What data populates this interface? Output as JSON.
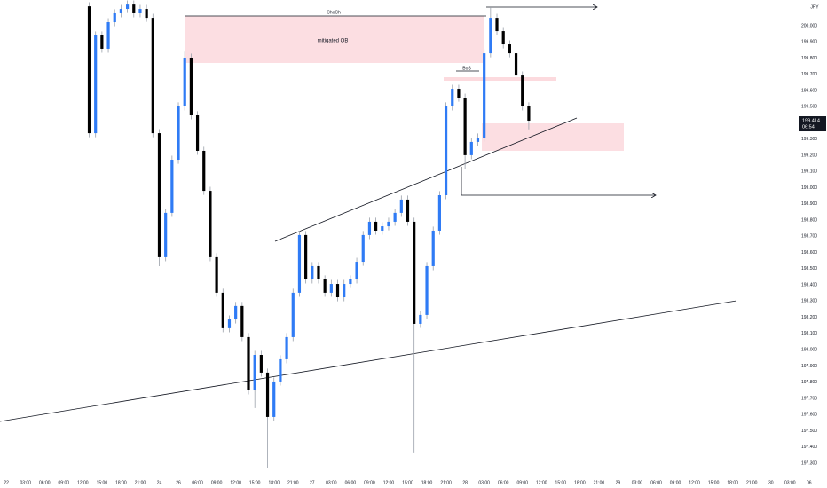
{
  "chart_data": {
    "type": "candlestick",
    "currency": "JPY",
    "annotations": [
      "ChoCh",
      "mitigated OB",
      "BoS"
    ],
    "up_color": "#2f7bf5",
    "down_color": "#000000",
    "wick_color": "#9aa0aa",
    "grid": false,
    "x": [
      13,
      14,
      15,
      16,
      17,
      18,
      19,
      20,
      21,
      22,
      23,
      24,
      25,
      26,
      27,
      28,
      29,
      30,
      31,
      32,
      33,
      34,
      35,
      36,
      37,
      38,
      39,
      40,
      41,
      42,
      43,
      44,
      45,
      46,
      47,
      48,
      49,
      50,
      51,
      52,
      53,
      54,
      55,
      56,
      57,
      58,
      59,
      60,
      61,
      62,
      63,
      64,
      65,
      66,
      67,
      68,
      69,
      70,
      71,
      72,
      73,
      74,
      75,
      76,
      77,
      78,
      79,
      80,
      81,
      82
    ],
    "open": [
      200.12,
      199.337,
      199.94,
      199.858,
      200.022,
      200.077,
      200.104,
      200.131,
      200.077,
      200.104,
      200.049,
      199.337,
      198.571,
      198.845,
      199.173,
      199.502,
      199.803,
      199.447,
      199.228,
      198.981,
      198.571,
      198.352,
      198.133,
      198.187,
      198.27,
      198.078,
      197.749,
      197.968,
      197.859,
      197.585,
      197.804,
      197.941,
      198.078,
      198.352,
      198.708,
      198.434,
      198.516,
      198.434,
      198.352,
      198.406,
      198.324,
      198.406,
      198.434,
      198.543,
      198.708,
      198.79,
      198.735,
      198.762,
      198.79,
      198.845,
      198.927,
      198.79,
      198.16,
      198.215,
      198.516,
      198.735,
      198.954,
      199.502,
      199.611,
      199.556,
      199.201,
      199.283,
      199.31,
      199.83,
      200.049,
      199.967,
      199.885,
      199.83,
      199.693,
      199.502
    ],
    "high": [
      200.145,
      199.965,
      199.965,
      200.047,
      200.102,
      200.129,
      200.156,
      200.156,
      200.129,
      200.129,
      200.074,
      199.362,
      198.87,
      199.198,
      199.527,
      199.84,
      199.828,
      199.472,
      199.253,
      199.006,
      198.596,
      198.377,
      198.212,
      198.295,
      198.295,
      198.103,
      197.993,
      197.993,
      197.884,
      197.829,
      197.966,
      198.103,
      198.377,
      198.733,
      198.733,
      198.541,
      198.541,
      198.459,
      198.431,
      198.431,
      198.431,
      198.459,
      198.568,
      198.733,
      198.815,
      198.815,
      198.787,
      198.815,
      198.87,
      198.952,
      198.952,
      198.815,
      198.24,
      198.541,
      198.76,
      198.979,
      199.527,
      199.636,
      199.636,
      199.581,
      199.308,
      199.335,
      199.855,
      200.115,
      200.074,
      199.992,
      199.91,
      199.855,
      199.718,
      199.527
    ],
    "low": [
      199.312,
      199.312,
      199.833,
      199.833,
      199.997,
      200.052,
      200.079,
      200.052,
      200.052,
      200.024,
      199.312,
      198.516,
      198.546,
      198.82,
      199.148,
      199.477,
      199.422,
      199.203,
      198.956,
      198.546,
      198.327,
      198.108,
      198.108,
      198.162,
      198.053,
      197.724,
      197.64,
      197.834,
      197.267,
      197.56,
      197.779,
      197.916,
      198.053,
      198.327,
      198.409,
      198.409,
      198.409,
      198.327,
      198.327,
      198.299,
      198.299,
      198.381,
      198.409,
      198.518,
      198.683,
      198.71,
      198.71,
      198.737,
      198.765,
      198.82,
      198.765,
      197.366,
      198.135,
      198.19,
      198.491,
      198.71,
      198.929,
      199.477,
      199.531,
      199.118,
      199.176,
      199.258,
      199.285,
      199.805,
      199.942,
      199.86,
      199.805,
      199.668,
      199.477,
      199.361
    ],
    "close": [
      199.337,
      199.94,
      199.858,
      200.022,
      200.077,
      200.104,
      200.131,
      200.077,
      200.104,
      200.049,
      199.337,
      198.571,
      198.845,
      199.173,
      199.502,
      199.803,
      199.447,
      199.228,
      198.981,
      198.571,
      198.352,
      198.133,
      198.187,
      198.27,
      198.078,
      197.749,
      197.968,
      197.859,
      197.585,
      197.804,
      197.941,
      198.078,
      198.352,
      198.708,
      198.434,
      198.516,
      198.434,
      198.352,
      198.406,
      198.324,
      198.406,
      198.434,
      198.543,
      198.708,
      198.79,
      198.735,
      198.762,
      198.79,
      198.845,
      198.927,
      198.79,
      198.16,
      198.215,
      198.516,
      198.735,
      198.954,
      199.502,
      199.611,
      199.556,
      199.201,
      199.283,
      199.31,
      199.83,
      200.049,
      199.967,
      199.885,
      199.83,
      199.693,
      199.502,
      199.414
    ],
    "last_price": {
      "value": 199.414,
      "label": "199.414"
    },
    "countdown": "06:54",
    "xlim": [
      -1,
      127
    ],
    "xticks": [
      {
        "value": 0,
        "label": "22"
      },
      {
        "value": 3,
        "label": "03:00"
      },
      {
        "value": 6,
        "label": "06:00"
      },
      {
        "value": 9,
        "label": "09:00"
      },
      {
        "value": 12,
        "label": "12:00"
      },
      {
        "value": 15,
        "label": "15:00"
      },
      {
        "value": 18,
        "label": "18:00"
      },
      {
        "value": 21,
        "label": "21:00"
      },
      {
        "value": 24,
        "label": "24"
      },
      {
        "value": 27,
        "label": "26"
      },
      {
        "value": 30,
        "label": "06:00"
      },
      {
        "value": 33,
        "label": "09:00"
      },
      {
        "value": 36,
        "label": "12:00"
      },
      {
        "value": 39,
        "label": "15:00"
      },
      {
        "value": 42,
        "label": "18:00"
      },
      {
        "value": 45,
        "label": "21:00"
      },
      {
        "value": 48,
        "label": "27"
      },
      {
        "value": 51,
        "label": "03:00"
      },
      {
        "value": 54,
        "label": "06:00"
      },
      {
        "value": 57,
        "label": "09:00"
      },
      {
        "value": 60,
        "label": "12:00"
      },
      {
        "value": 63,
        "label": "15:00"
      },
      {
        "value": 66,
        "label": "18:00"
      },
      {
        "value": 69,
        "label": "21:00"
      },
      {
        "value": 72,
        "label": "28"
      },
      {
        "value": 75,
        "label": "03:00"
      },
      {
        "value": 78,
        "label": "06:00"
      },
      {
        "value": 81,
        "label": "09:00"
      },
      {
        "value": 84,
        "label": "12:00"
      },
      {
        "value": 87,
        "label": "15:00"
      },
      {
        "value": 90,
        "label": "18:00"
      },
      {
        "value": 93,
        "label": "21:00"
      },
      {
        "value": 96,
        "label": "29"
      },
      {
        "value": 99,
        "label": "03:00"
      },
      {
        "value": 102,
        "label": "06:00"
      },
      {
        "value": 105,
        "label": "09:00"
      },
      {
        "value": 108,
        "label": "12:00"
      },
      {
        "value": 111,
        "label": "15:00"
      },
      {
        "value": 114,
        "label": "18:00"
      },
      {
        "value": 117,
        "label": "21:00"
      },
      {
        "value": 120,
        "label": "30"
      },
      {
        "value": 123,
        "label": "03:00"
      },
      {
        "value": 126,
        "label": "06"
      }
    ],
    "ylim": [
      197.256,
      200.159
    ],
    "yticks": [
      {
        "value": 200.0,
        "label": "200.000"
      },
      {
        "value": 199.9,
        "label": "199.900"
      },
      {
        "value": 199.8,
        "label": "199.800"
      },
      {
        "value": 199.7,
        "label": "199.700"
      },
      {
        "value": 199.6,
        "label": "199.600"
      },
      {
        "value": 199.5,
        "label": "199.500"
      },
      {
        "value": 199.4,
        "label": "199.400"
      },
      {
        "value": 199.3,
        "label": "199.300"
      },
      {
        "value": 199.2,
        "label": "199.200"
      },
      {
        "value": 199.1,
        "label": "199.100"
      },
      {
        "value": 199.0,
        "label": "199.000"
      },
      {
        "value": 198.9,
        "label": "198.900"
      },
      {
        "value": 198.8,
        "label": "198.800"
      },
      {
        "value": 198.7,
        "label": "198.700"
      },
      {
        "value": 198.6,
        "label": "198.600"
      },
      {
        "value": 198.5,
        "label": "198.500"
      },
      {
        "value": 198.4,
        "label": "198.400"
      },
      {
        "value": 198.3,
        "label": "198.300"
      },
      {
        "value": 198.2,
        "label": "198.200"
      },
      {
        "value": 198.1,
        "label": "198.100"
      },
      {
        "value": 198.0,
        "label": "198.000"
      },
      {
        "value": 197.9,
        "label": "197.900"
      },
      {
        "value": 197.8,
        "label": "197.800"
      },
      {
        "value": 197.7,
        "label": "197.700"
      },
      {
        "value": 197.6,
        "label": "197.600"
      },
      {
        "value": 197.5,
        "label": "197.500"
      },
      {
        "value": 197.4,
        "label": "197.400"
      },
      {
        "value": 197.3,
        "label": "197.300"
      }
    ]
  }
}
